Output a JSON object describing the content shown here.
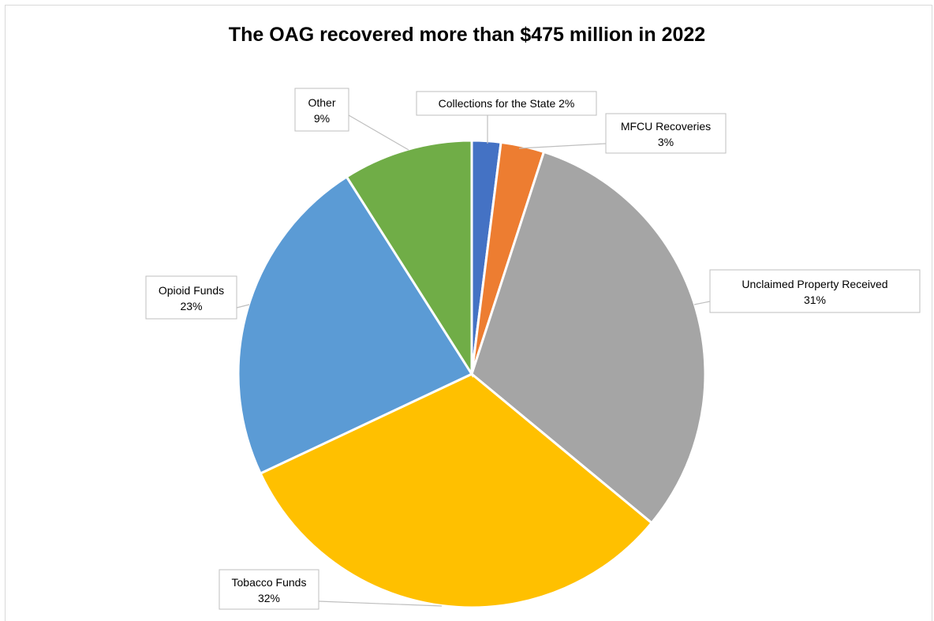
{
  "chart_data": {
    "type": "pie",
    "title": "The OAG recovered more than $475 million in 2022",
    "slices": [
      {
        "name": "Collections for the State",
        "value": 2,
        "label": "2%",
        "color": "#4472C4"
      },
      {
        "name": "MFCU Recoveries",
        "value": 3,
        "label": "3%",
        "color": "#ED7D31"
      },
      {
        "name": "Unclaimed Property Received",
        "value": 31,
        "label": "31%",
        "color": "#A5A5A5"
      },
      {
        "name": "Tobacco Funds",
        "value": 32,
        "label": "32%",
        "color": "#FFC000"
      },
      {
        "name": "Opioid Funds",
        "value": 23,
        "label": "23%",
        "color": "#5B9BD5"
      },
      {
        "name": "Other",
        "value": 9,
        "label": "9%",
        "color": "#70AD47"
      }
    ]
  }
}
